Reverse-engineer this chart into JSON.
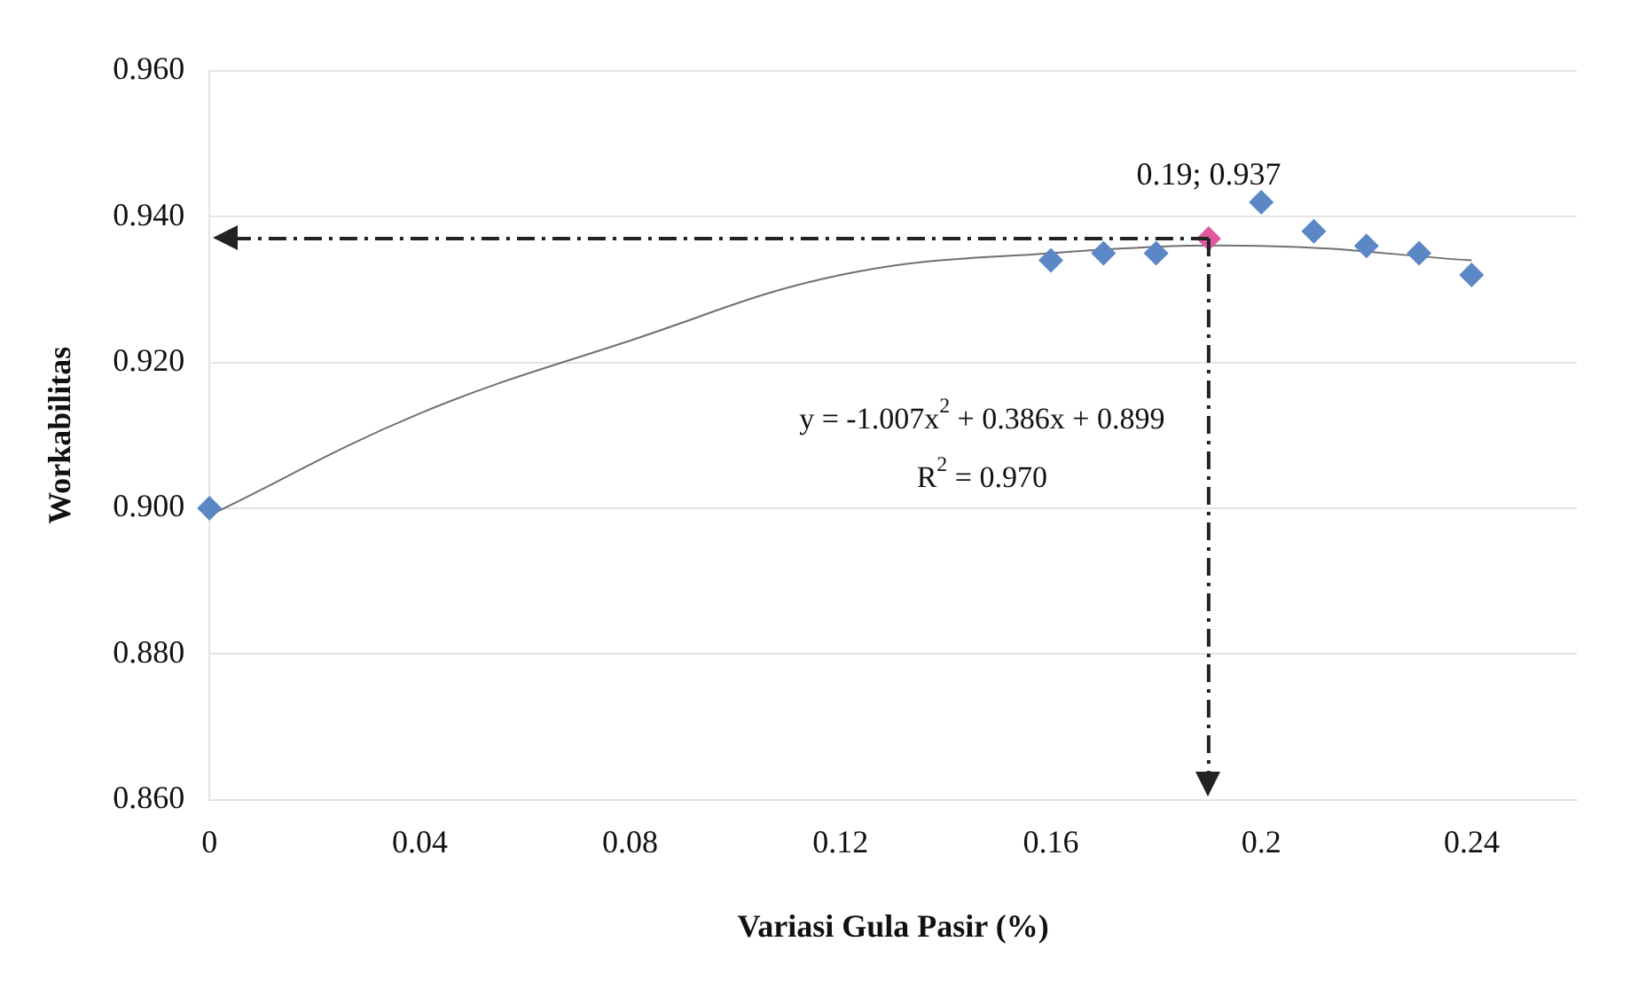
{
  "chart_data": {
    "type": "scatter",
    "xlabel": "Variasi Gula Pasir (%)",
    "ylabel": "Workabilitas",
    "xlim": [
      0,
      0.26
    ],
    "xticks": [
      0,
      0.04,
      0.08,
      0.12,
      0.16,
      0.2,
      0.24
    ],
    "ylim": [
      0.86,
      0.96
    ],
    "yticks": [
      {
        "value": 0.86,
        "label": "0.860"
      },
      {
        "value": 0.88,
        "label": "0.880"
      },
      {
        "value": 0.9,
        "label": "0.900"
      },
      {
        "value": 0.92,
        "label": "0.920"
      },
      {
        "value": 0.94,
        "label": "0.940"
      },
      {
        "value": 0.96,
        "label": "0.960"
      }
    ],
    "grid": "y",
    "legend": false,
    "marker": "diamond",
    "series": [
      {
        "type": "line",
        "color": "#707070",
        "marker": "none",
        "x": [
          0,
          0.04,
          0.08,
          0.12,
          0.16,
          0.2,
          0.24
        ],
        "values": [
          0.899,
          0.913,
          0.923,
          0.932,
          0.935,
          0.936,
          0.934
        ]
      },
      {
        "color": "#5b87c5",
        "x": [
          0,
          0.16,
          0.17,
          0.18,
          0.2,
          0.21,
          0.22,
          0.23,
          0.24
        ],
        "values": [
          0.9,
          0.934,
          0.935,
          0.935,
          0.942,
          0.938,
          0.936,
          0.935,
          0.932
        ]
      },
      {
        "color": "#e2589f",
        "x": [
          0.19
        ],
        "values": [
          0.937
        ]
      }
    ],
    "ref_lines": [
      {
        "axis": "y",
        "value": 0.937,
        "line_style": "dashdot",
        "color": "#222222"
      },
      {
        "axis": "x",
        "value": 0.19,
        "line_style": "dashdot",
        "color": "#222222"
      }
    ],
    "annotations": [
      {
        "text": "0.19; 0.937",
        "x": 0.19,
        "y": 0.937
      },
      "y = -1.007x$^{2}$ + 0.386x + 0.899",
      "R$^{2}$ = 0.970"
    ]
  }
}
